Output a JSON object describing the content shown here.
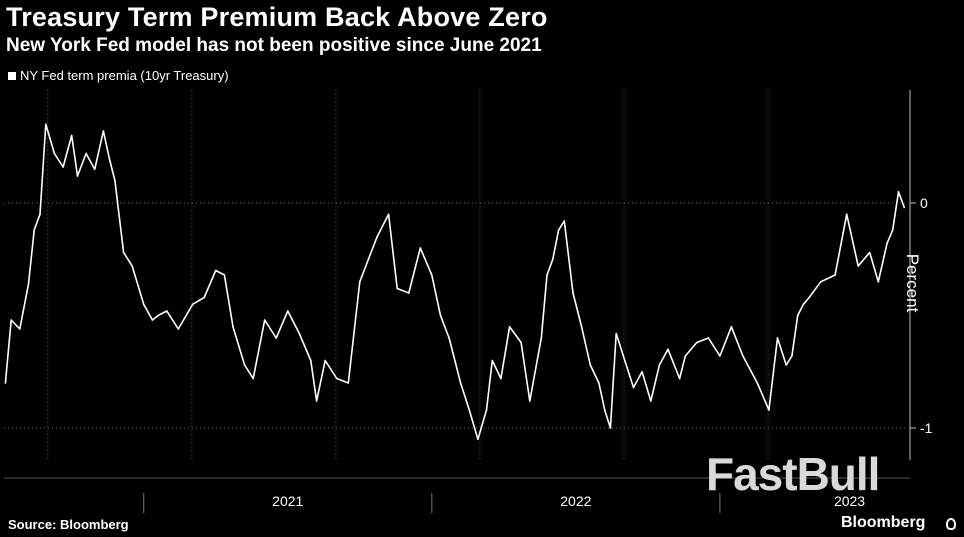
{
  "chart_data": {
    "type": "line",
    "title": "Treasury Term Premium Back Above Zero",
    "subtitle": "New York Fed model has not been positive since June 2021",
    "legend": [
      "NY Fed term premia (10yr Treasury)"
    ],
    "ylabel": "Percent",
    "xlabel": "",
    "yticks": [
      0,
      -1
    ],
    "ylim": [
      -1.2,
      0.5
    ],
    "xlim": [
      2020.515,
      2023.646
    ],
    "xticks": [
      {
        "label": "2021",
        "year_start": 2021,
        "label_at": 2021.5
      },
      {
        "label": "2022",
        "year_start": 2022,
        "label_at": 2022.5
      },
      {
        "label": "2023",
        "year_start": 2023,
        "label_at": 2023.45
      }
    ],
    "monthly_gridlines": [
      2020.667,
      2021.167,
      2021.667,
      2022.167,
      2022.667,
      2023.167
    ],
    "series": [
      {
        "name": "NY Fed term premia (10yr Treasury)",
        "x": [
          2020.52,
          2020.54,
          2020.57,
          2020.6,
          2020.62,
          2020.64,
          2020.66,
          2020.69,
          2020.72,
          2020.75,
          2020.77,
          2020.8,
          2020.83,
          2020.86,
          2020.88,
          2020.9,
          2020.93,
          2020.96,
          2021.0,
          2021.03,
          2021.05,
          2021.08,
          2021.12,
          2021.17,
          2021.21,
          2021.25,
          2021.28,
          2021.31,
          2021.35,
          2021.38,
          2021.42,
          2021.46,
          2021.5,
          2021.54,
          2021.58,
          2021.6,
          2021.63,
          2021.67,
          2021.71,
          2021.75,
          2021.78,
          2021.81,
          2021.85,
          2021.88,
          2021.92,
          2021.96,
          2022.0,
          2022.03,
          2022.06,
          2022.1,
          2022.13,
          2022.16,
          2022.19,
          2022.21,
          2022.24,
          2022.27,
          2022.31,
          2022.34,
          2022.38,
          2022.4,
          2022.42,
          2022.44,
          2022.46,
          2022.49,
          2022.52,
          2022.55,
          2022.58,
          2022.6,
          2022.62,
          2022.64,
          2022.67,
          2022.7,
          2022.73,
          2022.76,
          2022.79,
          2022.82,
          2022.86,
          2022.88,
          2022.92,
          2022.96,
          2023.0,
          2023.04,
          2023.08,
          2023.13,
          2023.17,
          2023.2,
          2023.23,
          2023.25,
          2023.27,
          2023.29,
          2023.31,
          2023.35,
          2023.4,
          2023.44,
          2023.48,
          2023.52,
          2023.55,
          2023.58,
          2023.6,
          2023.62,
          2023.64
        ],
        "y": [
          -0.8,
          -0.52,
          -0.56,
          -0.36,
          -0.12,
          -0.05,
          0.35,
          0.22,
          0.16,
          0.3,
          0.12,
          0.22,
          0.15,
          0.32,
          0.2,
          0.1,
          -0.22,
          -0.28,
          -0.45,
          -0.52,
          -0.5,
          -0.48,
          -0.56,
          -0.45,
          -0.42,
          -0.3,
          -0.32,
          -0.55,
          -0.72,
          -0.78,
          -0.52,
          -0.6,
          -0.48,
          -0.58,
          -0.7,
          -0.88,
          -0.7,
          -0.78,
          -0.8,
          -0.35,
          -0.25,
          -0.15,
          -0.05,
          -0.38,
          -0.4,
          -0.2,
          -0.32,
          -0.5,
          -0.6,
          -0.8,
          -0.92,
          -1.05,
          -0.92,
          -0.7,
          -0.78,
          -0.55,
          -0.62,
          -0.88,
          -0.6,
          -0.32,
          -0.25,
          -0.12,
          -0.08,
          -0.4,
          -0.55,
          -0.72,
          -0.8,
          -0.92,
          -1.0,
          -0.58,
          -0.7,
          -0.82,
          -0.75,
          -0.88,
          -0.72,
          -0.65,
          -0.78,
          -0.68,
          -0.62,
          -0.6,
          -0.68,
          -0.55,
          -0.68,
          -0.8,
          -0.92,
          -0.6,
          -0.72,
          -0.68,
          -0.5,
          -0.45,
          -0.42,
          -0.35,
          -0.32,
          -0.05,
          -0.28,
          -0.22,
          -0.35,
          -0.18,
          -0.12,
          0.05,
          -0.02
        ]
      }
    ]
  },
  "source": "Source: Bloomberg",
  "brand": "Bloomberg",
  "watermark": "FastBull"
}
